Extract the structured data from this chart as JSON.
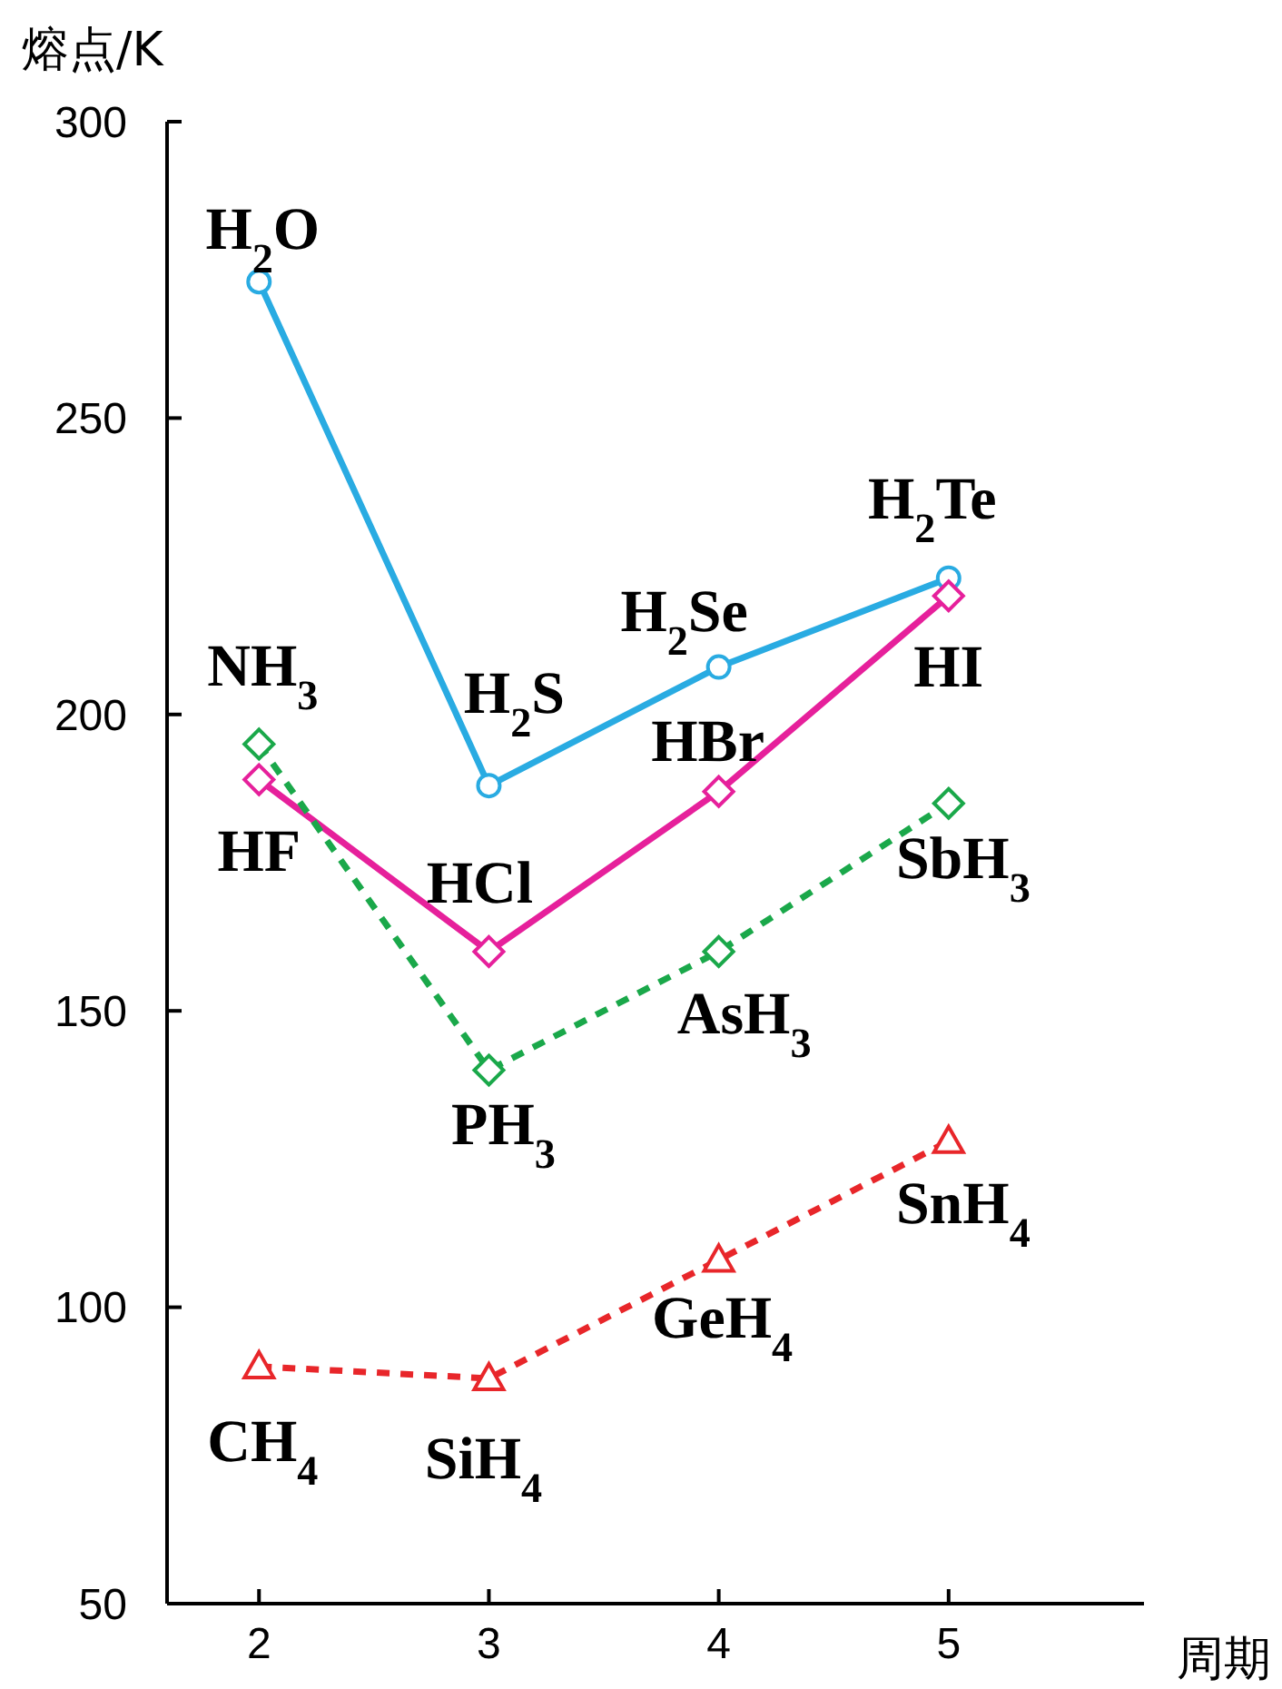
{
  "chart_data": {
    "type": "line",
    "xlabel": "周期",
    "ylabel": "熔点/K",
    "x": [
      2,
      3,
      4,
      5
    ],
    "xlim": [
      1.6,
      5.85
    ],
    "xticks": [
      2,
      3,
      4,
      5
    ],
    "ylim": [
      50,
      300
    ],
    "yticks": [
      50,
      100,
      150,
      200,
      250,
      300
    ],
    "grid": false,
    "series": [
      {
        "color": "#29abe2",
        "values": [
          273,
          188,
          208,
          223
        ],
        "marker": "circle",
        "line_style": "solid"
      },
      {
        "color": "#e6209b",
        "values": [
          189,
          160,
          187,
          220
        ],
        "marker": "diamond",
        "line_style": "solid"
      },
      {
        "color": "#1aa84a",
        "values": [
          195,
          140,
          160,
          185
        ],
        "marker": "diamond",
        "line_style": "dashed"
      },
      {
        "color": "#e8262a",
        "values": [
          90,
          88,
          108,
          128
        ],
        "marker": "triangle",
        "line_style": "dashed"
      }
    ],
    "annotations": [
      {
        "text": "H$_{2}$O",
        "x": 2,
        "y": 273
      },
      {
        "text": "H$_{2}$S",
        "x": 3,
        "y": 188
      },
      {
        "text": "H$_{2}$Se",
        "x": 4,
        "y": 208
      },
      {
        "text": "H$_{2}$Te",
        "x": 5,
        "y": 223
      },
      {
        "text": "HF",
        "x": 2,
        "y": 189
      },
      {
        "text": "HCl",
        "x": 3,
        "y": 160
      },
      {
        "text": "HBr",
        "x": 4,
        "y": 187
      },
      {
        "text": "HI",
        "x": 5,
        "y": 220
      },
      {
        "text": "NH$_{3}$",
        "x": 2,
        "y": 195
      },
      {
        "text": "PH$_{3}$",
        "x": 3,
        "y": 140
      },
      {
        "text": "AsH$_{3}$",
        "x": 4,
        "y": 160
      },
      {
        "text": "SbH$_{3}$",
        "x": 5,
        "y": 185
      },
      {
        "text": "CH$_{4}$",
        "x": 2,
        "y": 90
      },
      {
        "text": "SiH$_{4}$",
        "x": 3,
        "y": 88
      },
      {
        "text": "GeH$_{4}$",
        "x": 4,
        "y": 108
      },
      {
        "text": "SnH$_{4}$",
        "x": 5,
        "y": 128
      }
    ]
  }
}
